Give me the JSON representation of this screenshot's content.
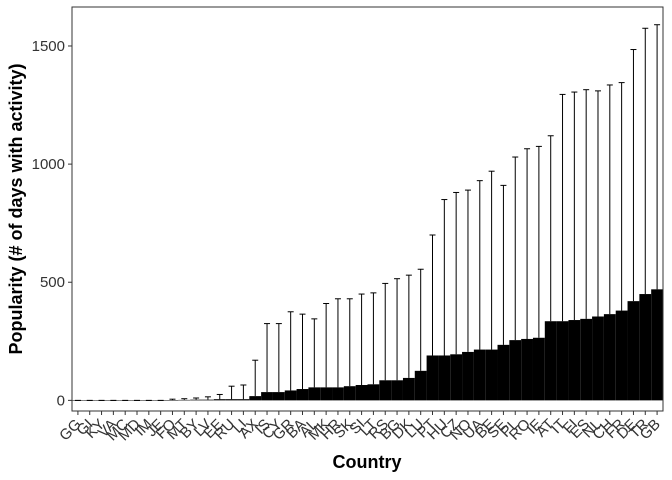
{
  "chart_data": {
    "type": "bar",
    "xlabel": "Country",
    "ylabel": "Popularity (# of days with activity)",
    "ylim": [
      -45,
      1665
    ],
    "yticks": [
      0,
      500,
      1000,
      1500
    ],
    "grid": false,
    "legend": "none",
    "bar_color": "#000000",
    "error_color": "#000000",
    "categories": [
      "GG",
      "GI",
      "KY",
      "VA",
      "MC",
      "MD",
      "IM",
      "JE",
      "FO",
      "MT",
      "BY",
      "LV",
      "EE",
      "RU",
      "LI",
      "AX",
      "IS",
      "CY",
      "GR",
      "BA",
      "AL",
      "MK",
      "HR",
      "SK",
      "SI",
      "LT",
      "RS",
      "BG",
      "DK",
      "LU",
      "PT",
      "HU",
      "CZ",
      "NO",
      "UA",
      "BE",
      "SE",
      "PL",
      "RO",
      "IE",
      "AT",
      "IT",
      "FI",
      "ES",
      "NL",
      "CH",
      "FR",
      "DE",
      "TR",
      "GB"
    ],
    "tick_labels": [
      "GG",
      "GI",
      "KY",
      "VA",
      "MC",
      "MD",
      "IM",
      "JE",
      "FO",
      "MT",
      "BY",
      "LV",
      "EE",
      "RU",
      "LI",
      "AX",
      "IS",
      "CY",
      "GR",
      "BA",
      "AL",
      "MK",
      "HR",
      "SK",
      "SI",
      "LT",
      "RS",
      "BG",
      "DK",
      "LU",
      "PT",
      "HU",
      "CZ",
      "NO",
      "UA",
      "BE",
      "SE",
      "PL",
      "RO",
      "IE",
      "AT",
      "IT",
      "FI",
      "ES",
      "NL",
      "CH",
      "FR",
      "DE",
      "TR",
      "GB"
    ],
    "values": [
      0,
      0,
      0,
      0,
      0,
      0,
      0,
      0,
      1,
      2,
      3,
      3,
      5,
      5,
      5,
      18,
      35,
      35,
      42,
      48,
      55,
      55,
      55,
      60,
      65,
      68,
      85,
      85,
      95,
      125,
      190,
      190,
      195,
      205,
      215,
      215,
      235,
      255,
      260,
      265,
      335,
      335,
      340,
      345,
      355,
      365,
      380,
      420,
      450,
      470
    ],
    "error_upper": [
      0,
      0,
      0,
      0,
      0,
      0,
      0,
      0,
      5,
      7,
      10,
      15,
      25,
      60,
      65,
      170,
      325,
      325,
      375,
      365,
      345,
      410,
      430,
      430,
      450,
      455,
      495,
      515,
      530,
      555,
      700,
      850,
      880,
      890,
      930,
      970,
      910,
      1030,
      1065,
      1075,
      1120,
      1295,
      1305,
      1315,
      1310,
      1335,
      1345,
      1485,
      1575,
      1590
    ]
  }
}
